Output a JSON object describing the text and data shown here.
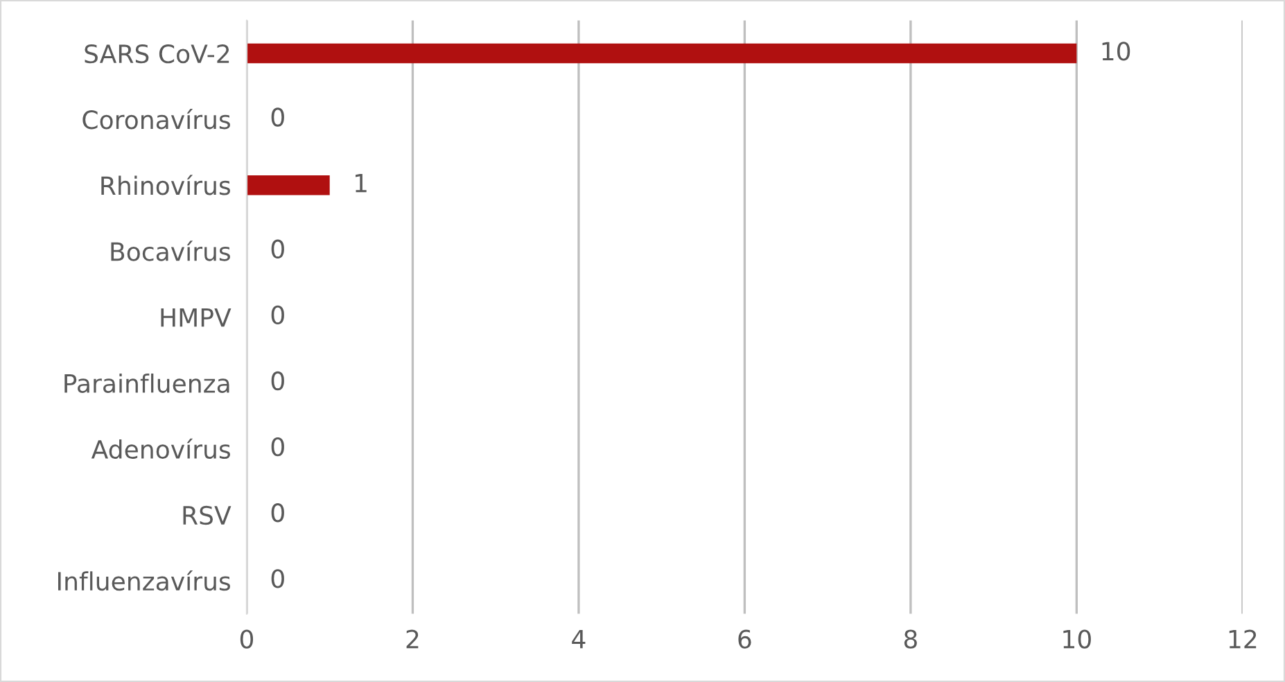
{
  "chart_data": {
    "type": "bar",
    "orientation": "horizontal",
    "categories": [
      "SARS CoV-2",
      "Coronavírus",
      "Rhinovírus",
      "Bocavírus",
      "HMPV",
      "Parainfluenza",
      "Adenovírus",
      "RSV",
      "Influenzavírus"
    ],
    "values": [
      10,
      0,
      1,
      0,
      0,
      0,
      0,
      0,
      0
    ],
    "color": "#b01010",
    "xlim": [
      0,
      12
    ],
    "xticks": [
      0,
      2,
      4,
      6,
      8,
      10,
      12
    ],
    "grid": "x",
    "data_labels": true,
    "legend": false
  }
}
